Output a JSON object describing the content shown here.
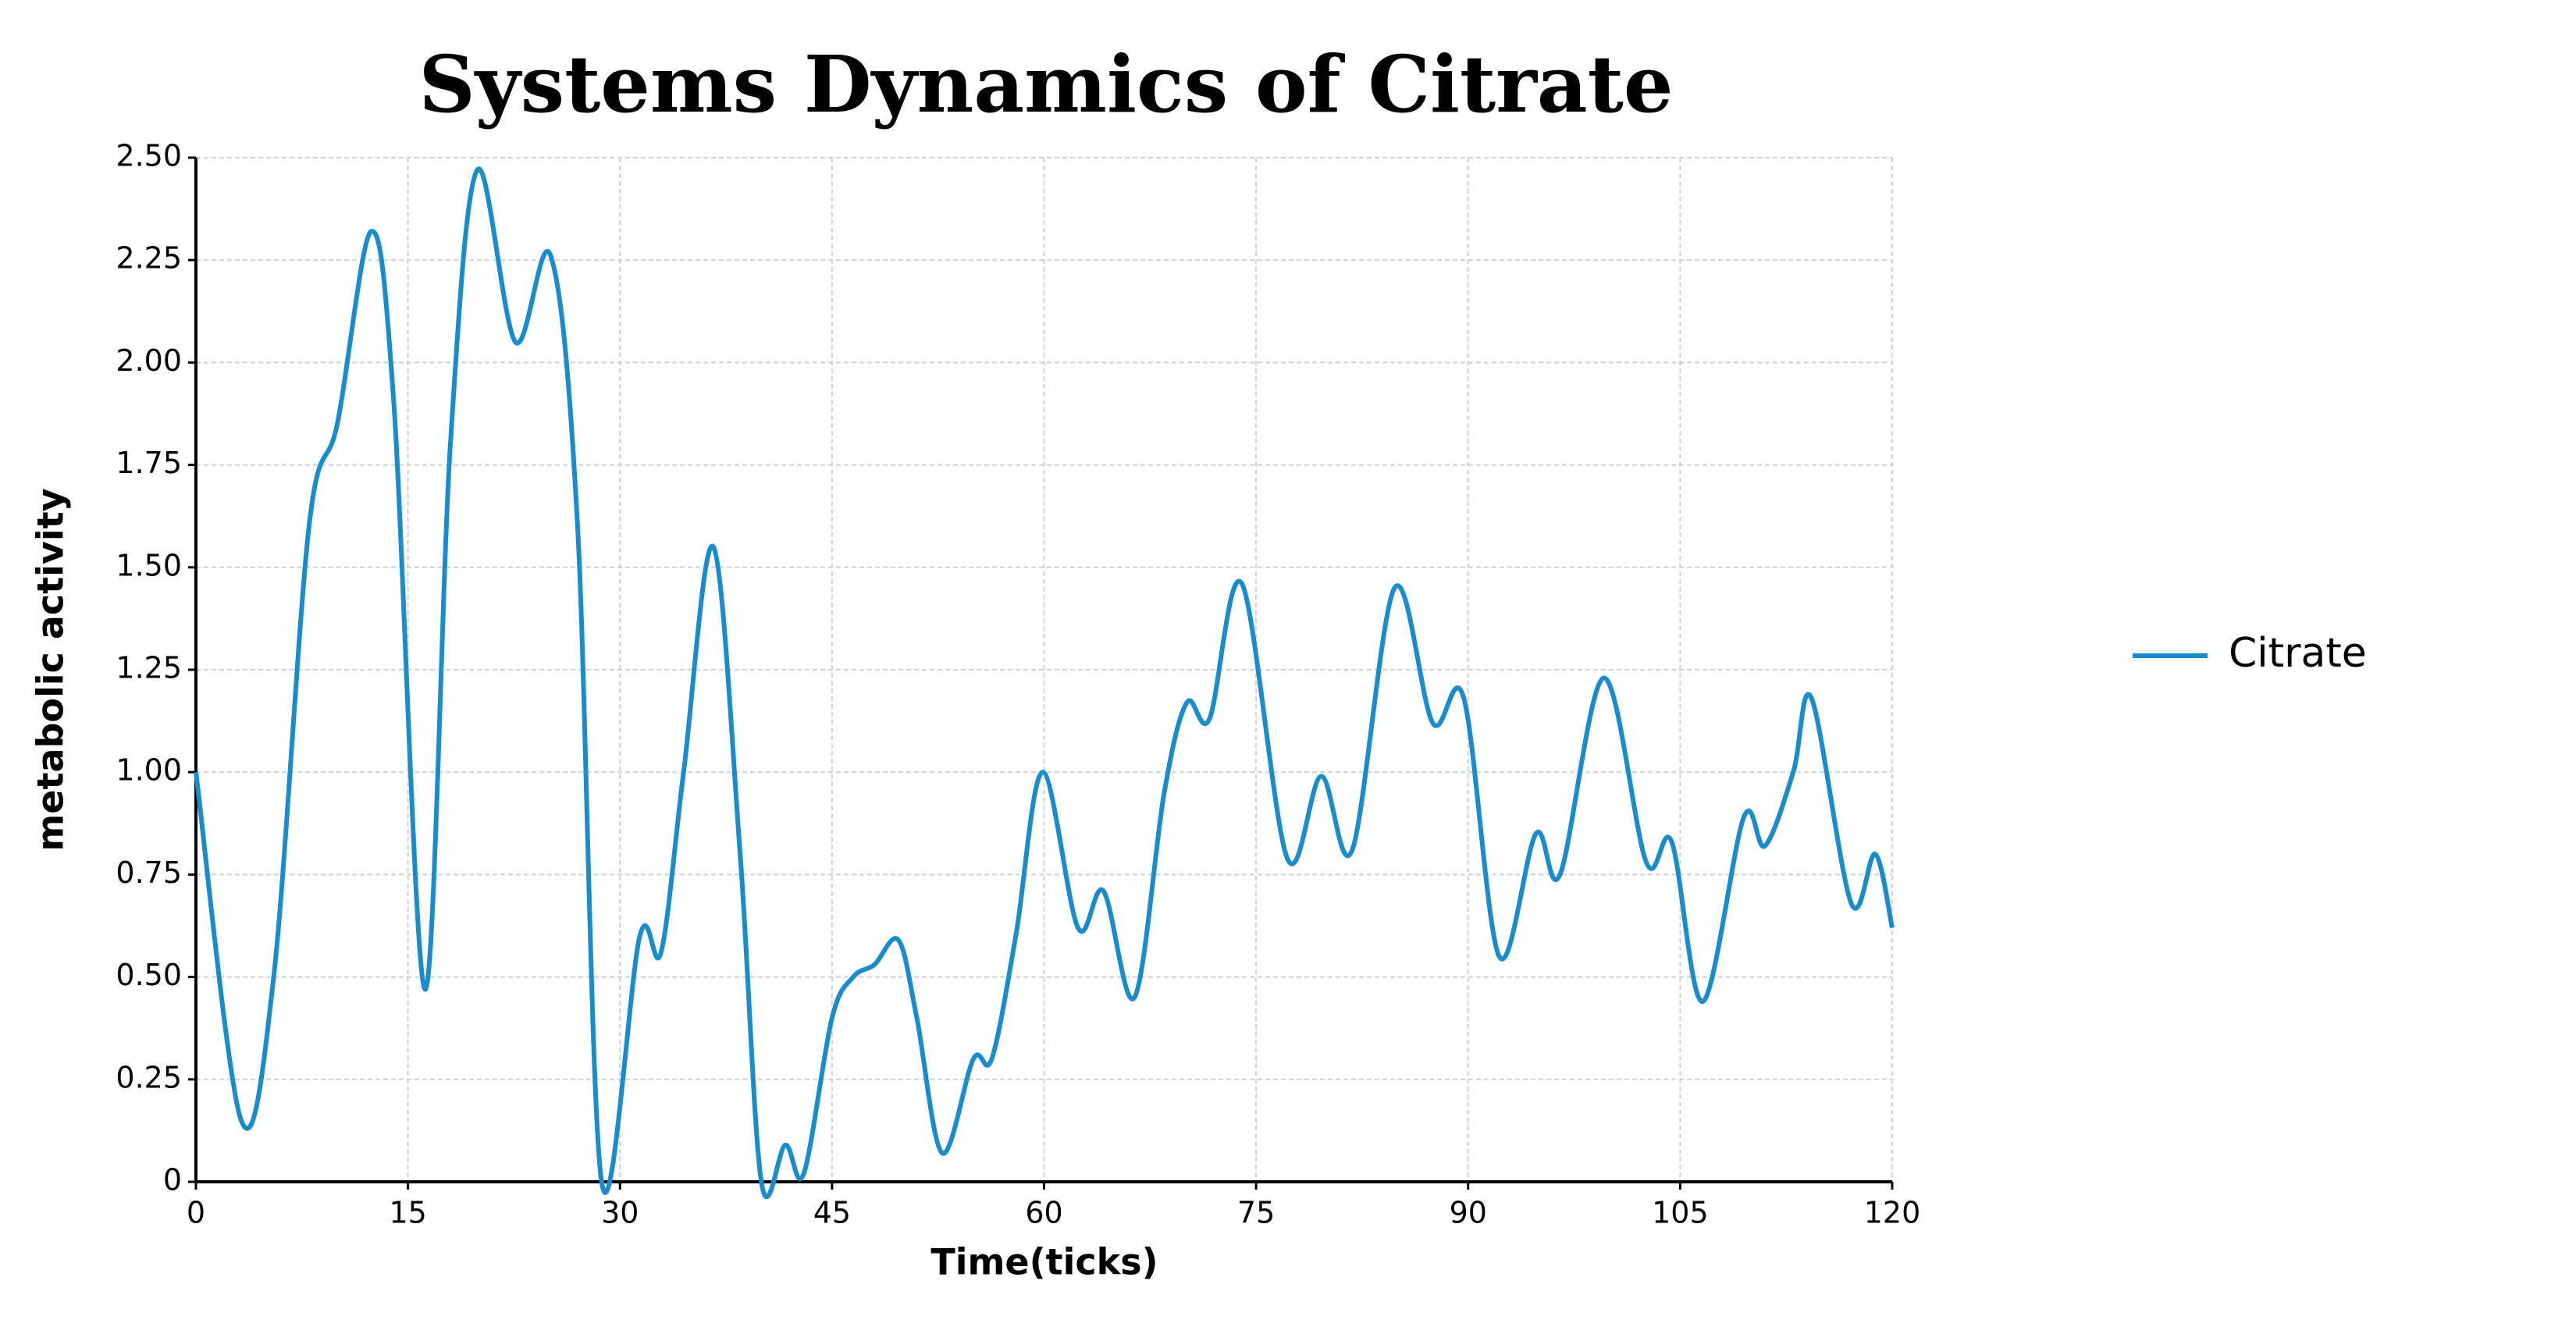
{
  "chart_data": {
    "type": "line",
    "title": "Systems Dynamics of Citrate",
    "x_label": "Time(ticks)",
    "y_label": "metabolic activity",
    "xlim": [
      0,
      120
    ],
    "xticks": [
      0,
      15,
      30,
      45,
      60,
      75,
      90,
      105,
      120
    ],
    "ylim": [
      0,
      2.5
    ],
    "yticks": [
      0,
      0.25,
      {
        "value": 0.5,
        "label": "0.50"
      },
      0.75,
      {
        "value": 1,
        "label": "1.00"
      },
      1.25,
      {
        "value": 1.5,
        "label": "1.50"
      },
      1.75,
      {
        "value": 2,
        "label": "2.00"
      },
      2.25,
      {
        "value": 2.5,
        "label": "2.50"
      }
    ],
    "grid": true,
    "legend": "right",
    "series": [
      {
        "name": "Citrate",
        "color": "#1a8ccc",
        "x": [
          0,
          3.2,
          5.5,
          8,
          10,
          12.4,
          14,
          16.2,
          18,
          19.9,
          22.6,
          25.1,
          27,
          28.7,
          31.4,
          32.9,
          34.5,
          36.6,
          38.5,
          40,
          41.7,
          43,
          45,
          46.5,
          48,
          49.7,
          51,
          52.8,
          55,
          56.3,
          58,
          59.9,
          62.4,
          64.2,
          66.4,
          68.5,
          70.1,
          71.7,
          74,
          77.2,
          79.6,
          81.8,
          84.8,
          87.5,
          89.7,
          92.2,
          94.8,
          96.5,
          99.6,
          102.6,
          104.4,
          106.6,
          109.5,
          111,
          113,
          114.3,
          117.1,
          118.8,
          120
        ],
        "values": [
          1.0,
          0.15,
          0.5,
          1.6,
          1.85,
          2.32,
          1.9,
          0.47,
          1.8,
          2.47,
          2.05,
          2.26,
          1.6,
          0,
          0.6,
          0.56,
          1.0,
          1.55,
          0.8,
          0,
          0.09,
          0.02,
          0.4,
          0.5,
          0.53,
          0.59,
          0.4,
          0.07,
          0.3,
          0.3,
          0.6,
          1.0,
          0.62,
          0.71,
          0.45,
          0.95,
          1.17,
          1.13,
          1.46,
          0.79,
          0.99,
          0.81,
          1.45,
          1.12,
          1.18,
          0.55,
          0.85,
          0.75,
          1.23,
          0.78,
          0.83,
          0.44,
          0.89,
          0.82,
          1.0,
          1.18,
          0.68,
          0.8,
          0.62
        ]
      }
    ]
  }
}
